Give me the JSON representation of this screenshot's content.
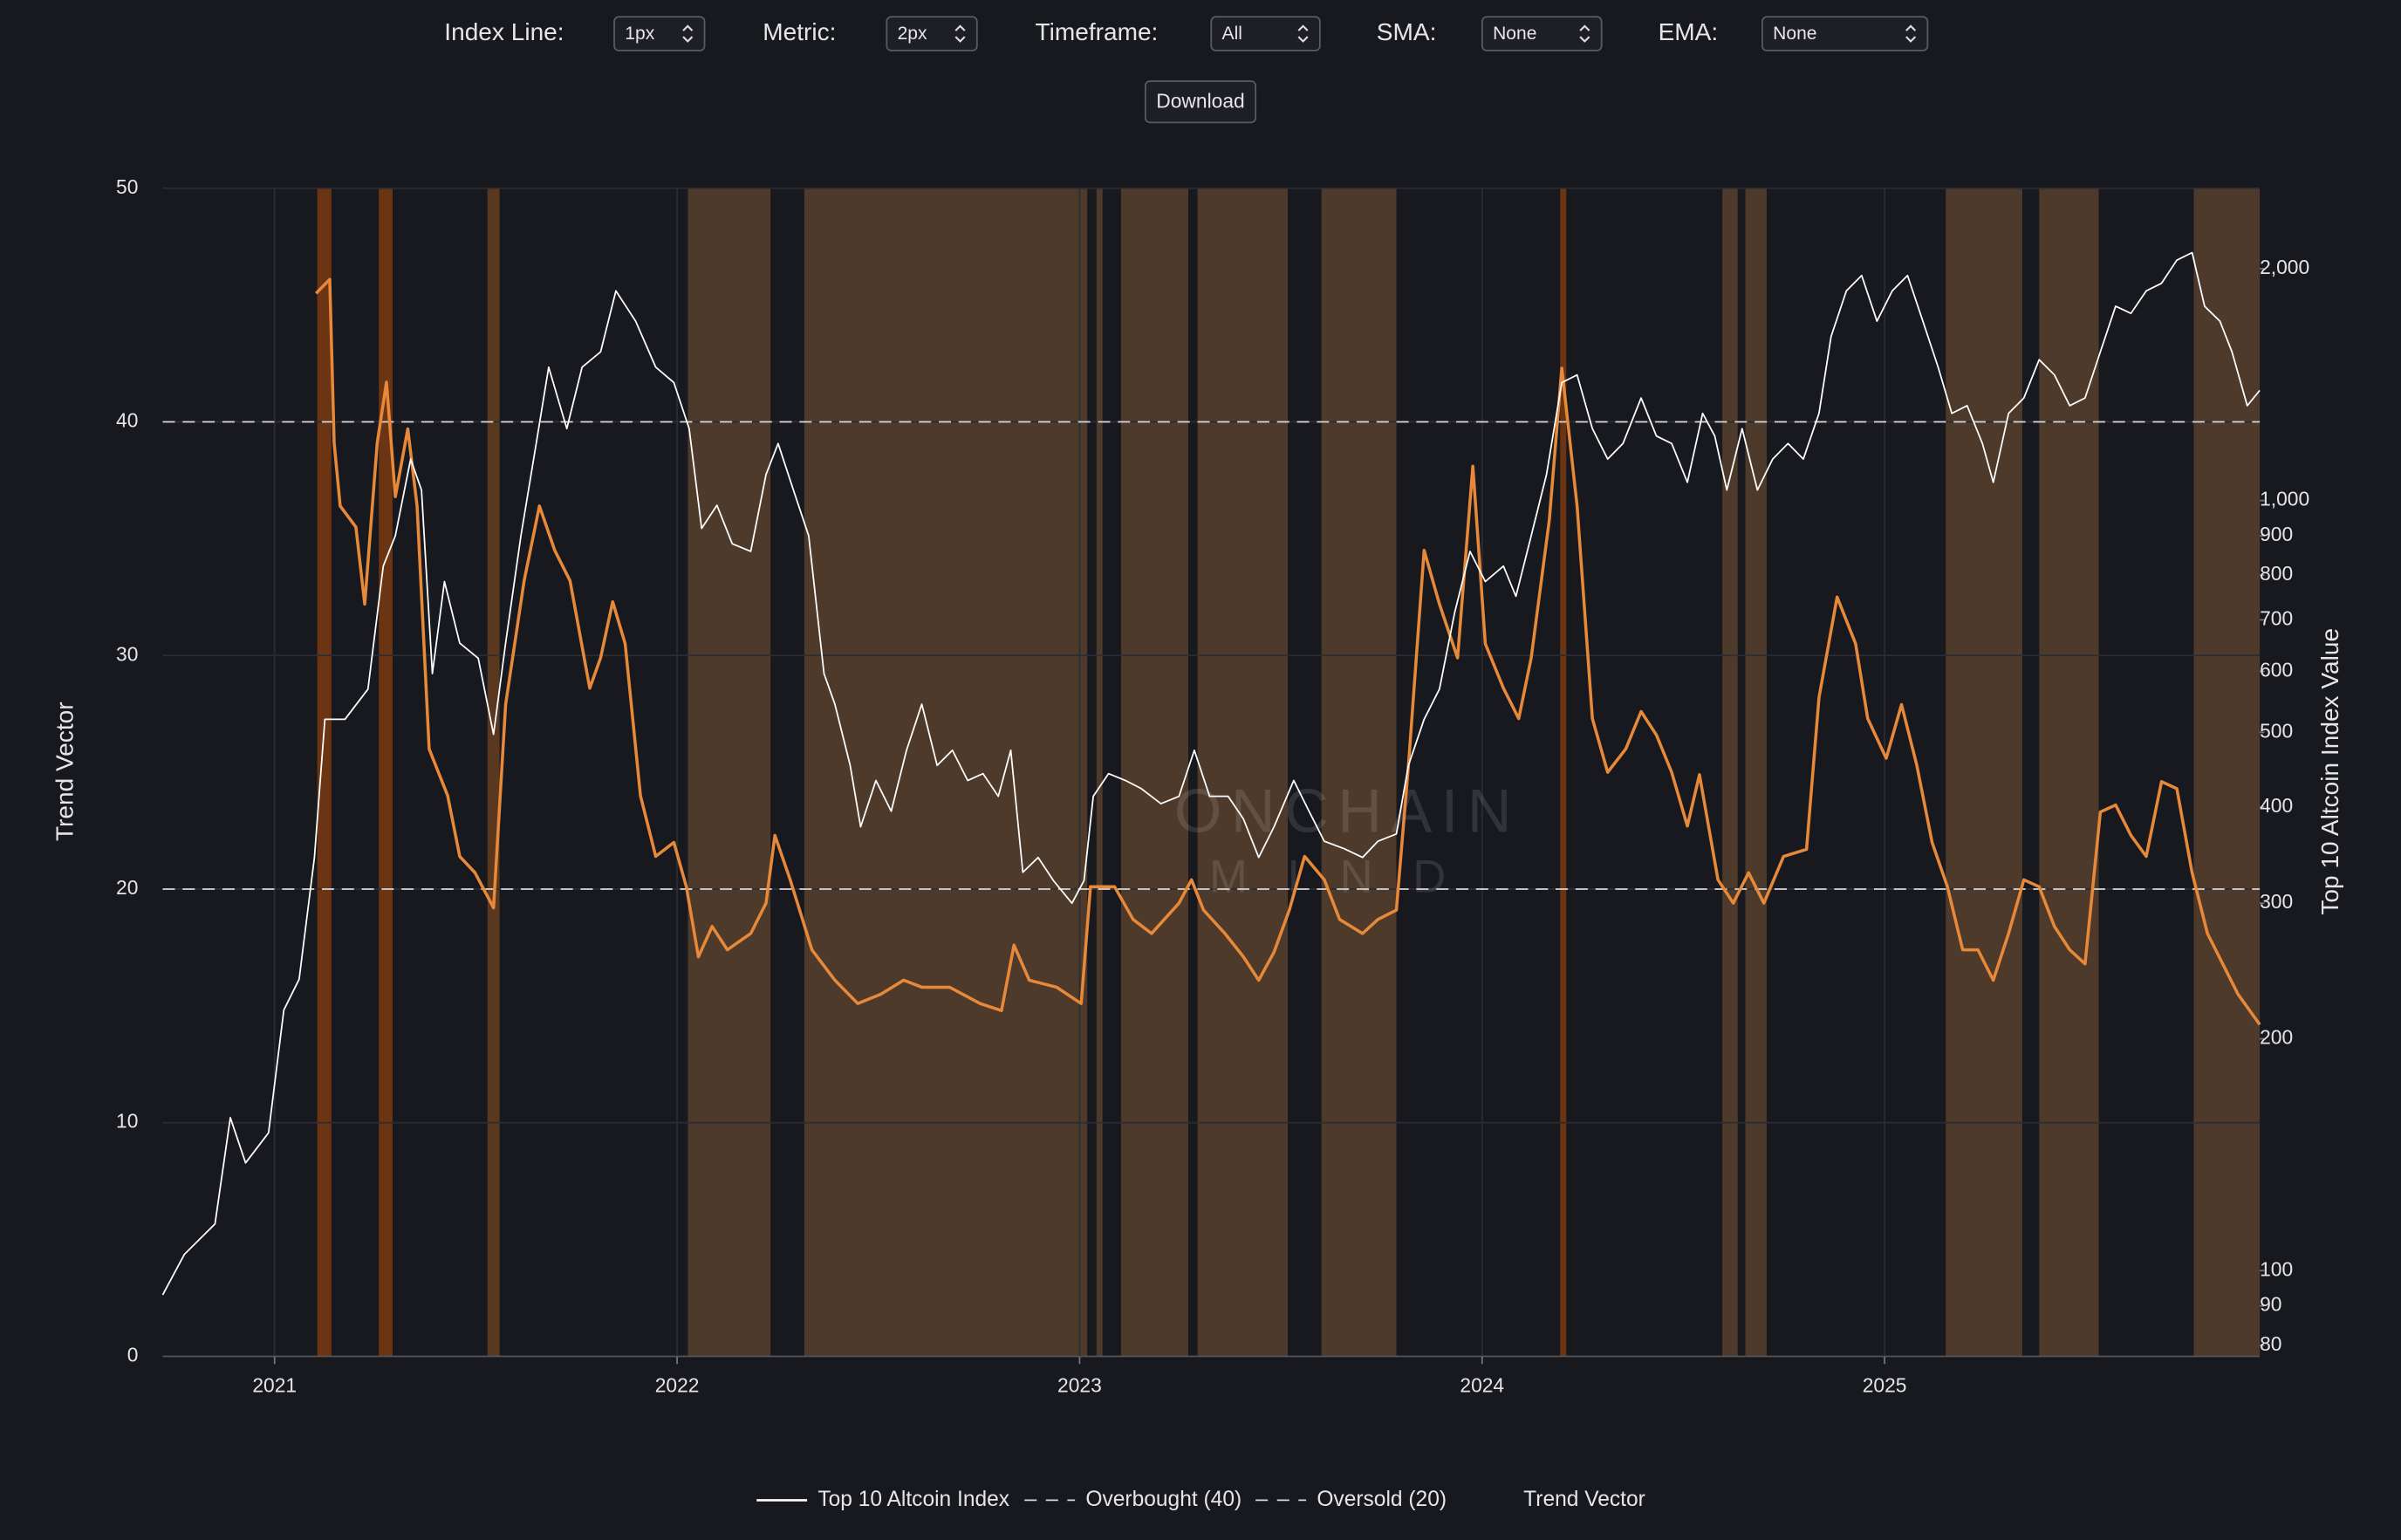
{
  "controls": [
    {
      "label": "Index Line:",
      "value": "1px"
    },
    {
      "label": "Metric:",
      "value": "2px"
    },
    {
      "label": "Timeframe:",
      "value": "All"
    },
    {
      "label": "SMA:",
      "value": "None"
    },
    {
      "label": "EMA:",
      "value": "None"
    }
  ],
  "download": "Download",
  "chart_data": {
    "type": "line",
    "ylabel": "Trend Vector",
    "y2label": "Top 10 Altcoin Index Value",
    "watermark": [
      "ONCHAIN",
      "MIND"
    ],
    "xlim": [
      2020.722,
      2025.932
    ],
    "xticks": [
      2021,
      2022,
      2023,
      2024,
      2025
    ],
    "ylim": [
      0,
      50
    ],
    "yticks": [
      0,
      10,
      20,
      30,
      40,
      50
    ],
    "y2lim": [
      77.4,
      2544
    ],
    "y2_log": true,
    "y2ticks": [
      80,
      90,
      100,
      200,
      300,
      400,
      500,
      600,
      700,
      800,
      900,
      {
        "value": 1000,
        "label": "1,000"
      },
      {
        "value": 2000,
        "label": "2,000"
      }
    ],
    "grid": true,
    "series": [
      {
        "name": "Top 10 Altcoin Index",
        "color": "#ffffff",
        "axis": "y2",
        "x": [
          2020.722,
          2020.776,
          2020.852,
          2020.89,
          2020.928,
          2020.985,
          2021.023,
          2021.061,
          2021.099,
          2021.125,
          2021.175,
          2021.232,
          2021.27,
          2021.3,
          2021.338,
          2021.365,
          2021.392,
          2021.422,
          2021.46,
          2021.506,
          2021.544,
          2021.574,
          2021.612,
          2021.65,
          2021.681,
          2021.726,
          2021.764,
          2021.81,
          2021.848,
          2021.897,
          2021.947,
          2021.992,
          2022.03,
          2022.061,
          2022.099,
          2022.137,
          2022.183,
          2022.221,
          2022.251,
          2022.289,
          2022.327,
          2022.365,
          2022.392,
          2022.43,
          2022.456,
          2022.494,
          2022.532,
          2022.57,
          2022.608,
          2022.646,
          2022.684,
          2022.722,
          2022.76,
          2022.798,
          2022.829,
          2022.859,
          2022.897,
          2022.935,
          2022.981,
          2023.011,
          2023.034,
          2023.072,
          2023.114,
          2023.152,
          2023.202,
          2023.247,
          2023.285,
          2023.323,
          2023.369,
          2023.407,
          2023.445,
          2023.483,
          2023.532,
          2023.57,
          2023.608,
          2023.658,
          2023.703,
          2023.741,
          2023.787,
          2023.817,
          2023.856,
          2023.894,
          2023.932,
          2023.97,
          2024.008,
          2024.053,
          2024.084,
          2024.122,
          2024.16,
          2024.198,
          2024.236,
          2024.274,
          2024.312,
          2024.35,
          2024.395,
          2024.433,
          2024.471,
          2024.51,
          2024.548,
          2024.578,
          2024.608,
          2024.646,
          2024.684,
          2024.722,
          2024.76,
          2024.798,
          2024.837,
          2024.867,
          2024.905,
          2024.943,
          2024.981,
          2025.019,
          2025.057,
          2025.095,
          2025.133,
          2025.167,
          2025.205,
          2025.243,
          2025.27,
          2025.308,
          2025.346,
          2025.384,
          2025.422,
          2025.46,
          2025.498,
          2025.536,
          2025.574,
          2025.612,
          2025.65,
          2025.688,
          2025.726,
          2025.764,
          2025.795,
          2025.833,
          2025.863,
          2025.901,
          2025.932
        ],
        "values": [
          93,
          105,
          115,
          158,
          138,
          151,
          218,
          239,
          344,
          520,
          520,
          569,
          822,
          900,
          1132,
          1032,
          596,
          785,
          653,
          624,
          497,
          653,
          900,
          1186,
          1490,
          1240,
          1490,
          1560,
          1872,
          1710,
          1490,
          1423,
          1240,
          920,
          986,
          879,
          859,
          1081,
          1186,
          1032,
          900,
          596,
          544,
          453,
          377,
          433,
          395,
          474,
          544,
          453,
          474,
          433,
          442,
          413,
          474,
          329,
          344,
          321,
          300,
          321,
          413,
          442,
          433,
          423,
          404,
          413,
          474,
          413,
          413,
          386,
          344,
          377,
          433,
          395,
          361,
          353,
          344,
          361,
          369,
          453,
          520,
          569,
          716,
          859,
          785,
          822,
          751,
          900,
          1081,
          1423,
          1456,
          1240,
          1132,
          1186,
          1359,
          1213,
          1186,
          1056,
          1298,
          1213,
          1032,
          1240,
          1032,
          1132,
          1186,
          1132,
          1298,
          1633,
          1872,
          1960,
          1710,
          1872,
          1960,
          1710,
          1490,
          1298,
          1328,
          1186,
          1056,
          1298,
          1359,
          1524,
          1456,
          1328,
          1359,
          1560,
          1788,
          1750,
          1872,
          1915,
          2052,
          2099,
          1788,
          1710,
          1560,
          1328,
          1390
        ]
      },
      {
        "name": "Trend Vector",
        "color": "#e8893a",
        "x": [
          2021.103,
          2021.137,
          2021.148,
          2021.163,
          2021.202,
          2021.224,
          2021.255,
          2021.278,
          2021.3,
          2021.331,
          2021.354,
          2021.384,
          2021.43,
          2021.46,
          2021.498,
          2021.544,
          2021.574,
          2021.62,
          2021.658,
          2021.696,
          2021.734,
          2021.783,
          2021.81,
          2021.84,
          2021.871,
          2021.909,
          2021.947,
          2021.992,
          2022.023,
          2022.053,
          2022.087,
          2022.125,
          2022.183,
          2022.221,
          2022.243,
          2022.281,
          2022.335,
          2022.392,
          2022.449,
          2022.506,
          2022.563,
          2022.608,
          2022.677,
          2022.753,
          2022.806,
          2022.837,
          2022.875,
          2022.943,
          2023.004,
          2023.027,
          2023.087,
          2023.133,
          2023.179,
          2023.247,
          2023.278,
          2023.308,
          2023.361,
          2023.407,
          2023.445,
          2023.483,
          2023.521,
          2023.559,
          2023.608,
          2023.646,
          2023.703,
          2023.741,
          2023.787,
          2023.817,
          2023.856,
          2023.894,
          2023.939,
          2023.977,
          2024.008,
          2024.053,
          2024.091,
          2024.122,
          2024.167,
          2024.198,
          2024.236,
          2024.274,
          2024.312,
          2024.357,
          2024.395,
          2024.433,
          2024.471,
          2024.51,
          2024.54,
          2024.586,
          2024.624,
          2024.662,
          2024.7,
          2024.749,
          2024.806,
          2024.837,
          2024.882,
          2024.928,
          2024.958,
          2025.004,
          2025.042,
          2025.08,
          2025.118,
          2025.156,
          2025.194,
          2025.232,
          2025.27,
          2025.308,
          2025.346,
          2025.384,
          2025.422,
          2025.46,
          2025.498,
          2025.536,
          2025.574,
          2025.612,
          2025.65,
          2025.688,
          2025.726,
          2025.764,
          2025.802,
          2025.84,
          2025.878,
          2025.932
        ],
        "values": [
          45.5,
          46.1,
          39.1,
          36.4,
          35.5,
          32.2,
          39.1,
          41.7,
          36.8,
          39.7,
          36.4,
          26.0,
          24.0,
          21.4,
          20.7,
          19.2,
          27.9,
          33.2,
          36.4,
          34.5,
          33.2,
          28.6,
          29.9,
          32.3,
          30.5,
          24.0,
          21.4,
          22.0,
          20.1,
          17.1,
          18.4,
          17.4,
          18.1,
          19.4,
          22.3,
          20.4,
          17.4,
          16.1,
          15.1,
          15.5,
          16.1,
          15.8,
          15.8,
          15.1,
          14.8,
          17.6,
          16.1,
          15.8,
          15.1,
          20.1,
          20.1,
          18.7,
          18.1,
          19.4,
          20.4,
          19.1,
          18.1,
          17.1,
          16.1,
          17.3,
          19.1,
          21.4,
          20.4,
          18.7,
          18.1,
          18.7,
          19.1,
          25.3,
          34.5,
          32.2,
          29.9,
          38.1,
          30.5,
          28.6,
          27.3,
          29.9,
          35.8,
          42.3,
          36.4,
          27.3,
          25.0,
          26.0,
          27.6,
          26.6,
          25.0,
          22.7,
          24.9,
          20.4,
          19.4,
          20.7,
          19.4,
          21.4,
          21.7,
          28.2,
          32.5,
          30.5,
          27.3,
          25.6,
          27.9,
          25.3,
          22.0,
          20.1,
          17.4,
          17.4,
          16.1,
          18.1,
          20.4,
          20.1,
          18.4,
          17.4,
          16.8,
          23.3,
          23.6,
          22.3,
          21.4,
          24.6,
          24.3,
          20.7,
          18.1,
          16.8,
          15.5,
          14.2
        ]
      }
    ],
    "reference_lines": [
      {
        "name": "Overbought (40)",
        "value": 40,
        "color": "#d9d9d9"
      },
      {
        "name": "Oversold (20)",
        "value": 20,
        "color": "#d9d9d9"
      }
    ],
    "bands": [
      {
        "x": [
          2021.106,
          2021.141
        ],
        "color": "#6b3514"
      },
      {
        "x": [
          2021.259,
          2021.293
        ],
        "color": "#6b3514"
      },
      {
        "x": [
          2021.529,
          2021.559
        ],
        "color": "#5a3820"
      },
      {
        "x": [
          2022.027,
          2022.232
        ],
        "color": "#4e3a2b"
      },
      {
        "x": [
          2022.316,
          2023.019
        ],
        "color": "#4e3a2b"
      },
      {
        "x": [
          2023.042,
          2023.057
        ],
        "color": "#4e3a2b"
      },
      {
        "x": [
          2023.103,
          2023.27
        ],
        "color": "#4e3a2b"
      },
      {
        "x": [
          2023.293,
          2023.517
        ],
        "color": "#4e3a2b"
      },
      {
        "x": [
          2023.601,
          2023.787
        ],
        "color": "#4e3a2b"
      },
      {
        "x": [
          2024.194,
          2024.209
        ],
        "color": "#6b3514"
      },
      {
        "x": [
          2024.597,
          2024.635
        ],
        "color": "#4e3a2b"
      },
      {
        "x": [
          2024.654,
          2024.707
        ],
        "color": "#4e3a2b"
      },
      {
        "x": [
          2025.152,
          2025.342
        ],
        "color": "#4e3a2b"
      },
      {
        "x": [
          2025.384,
          2025.532
        ],
        "color": "#4e3a2b"
      },
      {
        "x": [
          2025.768,
          2025.932
        ],
        "color": "#4e3a2b"
      }
    ]
  }
}
